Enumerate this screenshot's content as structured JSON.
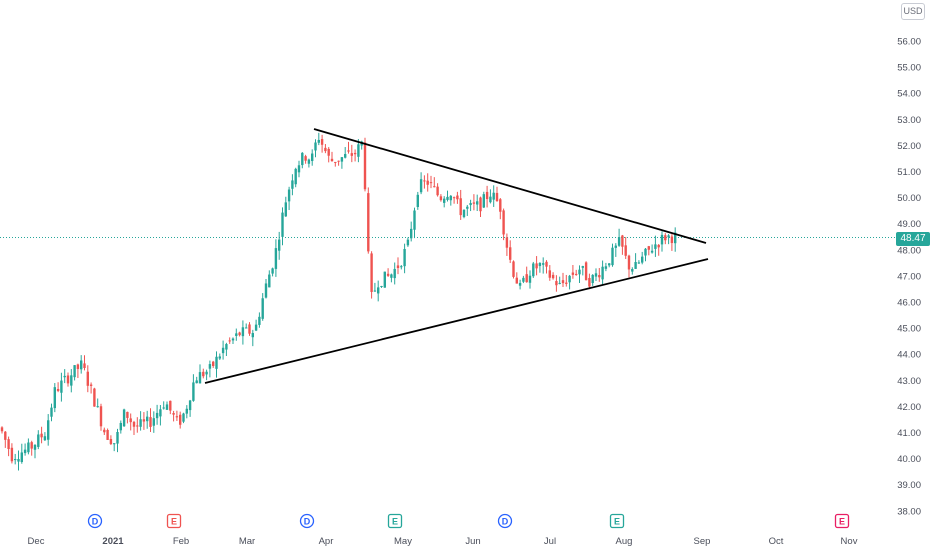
{
  "currency": "USD",
  "current_price": "48.47",
  "colors": {
    "up": "#26a69a",
    "down": "#ef5350",
    "dividend": "#2962ff",
    "earnings_past": "#26a69a",
    "earnings_neg": "#ef5350",
    "earnings_future": "#e91e63",
    "trendline": "#000000"
  },
  "chart_data": {
    "type": "candlestick",
    "y_axis": {
      "min": 38.0,
      "max": 56.0,
      "ticks": [
        "56.00",
        "55.00",
        "54.00",
        "53.00",
        "52.00",
        "51.00",
        "50.00",
        "49.00",
        "48.00",
        "47.00",
        "46.00",
        "45.00",
        "44.00",
        "43.00",
        "42.00",
        "41.00",
        "40.00",
        "39.00",
        "38.00"
      ]
    },
    "x_axis": {
      "labels": [
        "Dec",
        "2021",
        "Feb",
        "Mar",
        "Apr",
        "May",
        "Jun",
        "Jul",
        "Aug",
        "Sep",
        "Oct",
        "Nov"
      ]
    },
    "grid": false,
    "current_price_line": 48.47,
    "trendlines": [
      {
        "name": "upper",
        "from": {
          "date": "2021-03-28",
          "price": 52.7
        },
        "to": {
          "date": "2021-08-31",
          "price": 48.3
        }
      },
      {
        "name": "lower",
        "from": {
          "date": "2021-02-05",
          "price": 43.0
        },
        "to": {
          "date": "2021-09-01",
          "price": 47.7
        }
      }
    ],
    "events": [
      {
        "type": "dividend",
        "letter": "D",
        "month": "Dec-Jan"
      },
      {
        "type": "earnings",
        "letter": "E",
        "month": "Jan-Feb",
        "status": "negative"
      },
      {
        "type": "dividend",
        "letter": "D",
        "month": "Mar-Apr"
      },
      {
        "type": "earnings",
        "letter": "E",
        "month": "Apr-May",
        "status": "positive"
      },
      {
        "type": "dividend",
        "letter": "D",
        "month": "Jun-Jul"
      },
      {
        "type": "earnings",
        "letter": "E",
        "month": "Jul-Aug",
        "status": "positive"
      },
      {
        "type": "earnings",
        "letter": "E",
        "month": "Oct-Nov",
        "status": "future"
      }
    ],
    "candle_path": [
      [
        0,
        41.2
      ],
      [
        12,
        40.1
      ],
      [
        30,
        40.4
      ],
      [
        45,
        41.0
      ],
      [
        55,
        42.6
      ],
      [
        70,
        43.2
      ],
      [
        82,
        43.6
      ],
      [
        92,
        42.5
      ],
      [
        105,
        41.0
      ],
      [
        115,
        40.6
      ],
      [
        125,
        41.8
      ],
      [
        135,
        41.2
      ],
      [
        150,
        41.4
      ],
      [
        165,
        42.2
      ],
      [
        178,
        41.3
      ],
      [
        185,
        41.8
      ],
      [
        195,
        43.1
      ],
      [
        210,
        43.4
      ],
      [
        225,
        44.3
      ],
      [
        240,
        44.8
      ],
      [
        255,
        44.9
      ],
      [
        265,
        46.5
      ],
      [
        275,
        47.8
      ],
      [
        285,
        49.8
      ],
      [
        295,
        51.2
      ],
      [
        305,
        51.6
      ],
      [
        312,
        51.5
      ],
      [
        318,
        52.4
      ],
      [
        330,
        51.4
      ],
      [
        340,
        51.5
      ],
      [
        355,
        51.7
      ],
      [
        362,
        52.1
      ],
      [
        366,
        50.0
      ],
      [
        370,
        46.0
      ],
      [
        378,
        46.8
      ],
      [
        390,
        47.0
      ],
      [
        400,
        47.5
      ],
      [
        408,
        48.2
      ],
      [
        418,
        50.4
      ],
      [
        428,
        50.6
      ],
      [
        440,
        50.0
      ],
      [
        450,
        50.3
      ],
      [
        460,
        49.5
      ],
      [
        470,
        49.6
      ],
      [
        480,
        49.7
      ],
      [
        490,
        50.2
      ],
      [
        500,
        49.7
      ],
      [
        505,
        48.5
      ],
      [
        512,
        47.3
      ],
      [
        520,
        46.5
      ],
      [
        530,
        47.2
      ],
      [
        540,
        47.4
      ],
      [
        550,
        47.0
      ],
      [
        560,
        46.6
      ],
      [
        570,
        47.0
      ],
      [
        580,
        47.3
      ],
      [
        590,
        46.8
      ],
      [
        600,
        47.2
      ],
      [
        610,
        47.7
      ],
      [
        620,
        48.3
      ],
      [
        628,
        47.4
      ],
      [
        635,
        47.3
      ],
      [
        645,
        47.8
      ],
      [
        655,
        48.2
      ],
      [
        665,
        48.5
      ],
      [
        675,
        48.5
      ]
    ]
  }
}
